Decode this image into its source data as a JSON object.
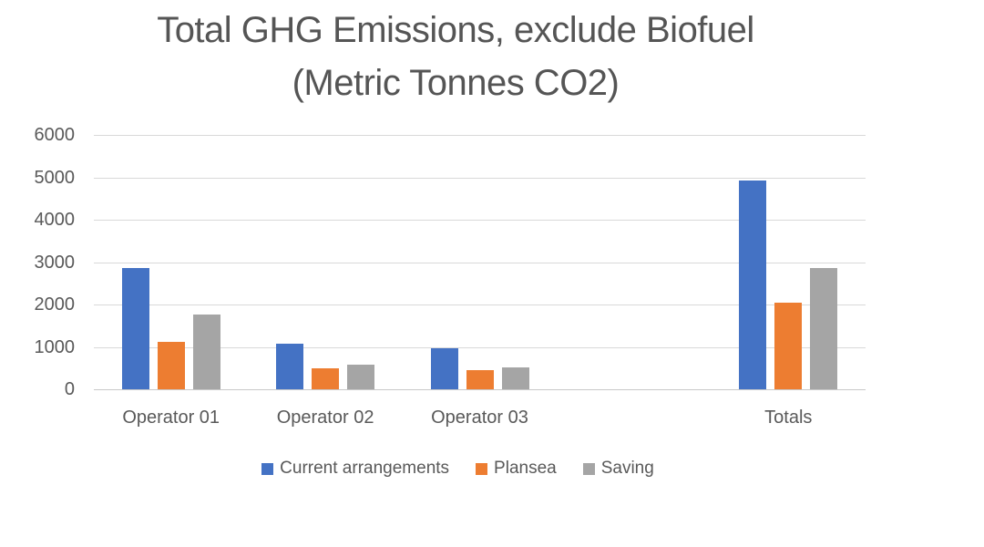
{
  "chart_data": {
    "type": "bar",
    "title": "Total GHG Emissions, exclude Biofuel (Metric Tonnes CO2)",
    "title_line1": "Total GHG Emissions, exclude Biofuel",
    "title_line2": "(Metric Tonnes CO2)",
    "categories": [
      "Operator 01",
      "Operator 02",
      "Operator 03",
      "",
      "Totals"
    ],
    "series": [
      {
        "name": "Current arrangements",
        "color": "#4472C4",
        "values": [
          2870,
          1080,
          970,
          null,
          4920
        ]
      },
      {
        "name": "Plansea",
        "color": "#ED7D31",
        "values": [
          1110,
          490,
          450,
          null,
          2050
        ]
      },
      {
        "name": "Saving",
        "color": "#A5A5A5",
        "values": [
          1760,
          590,
          520,
          null,
          2870
        ]
      }
    ],
    "xlabel": "",
    "ylabel": "",
    "ylim": [
      0,
      6000
    ],
    "y_ticks": [
      0,
      1000,
      2000,
      3000,
      4000,
      5000,
      6000
    ],
    "grid": true,
    "legend_position": "bottom",
    "colors": {
      "gridline": "#D9D9D9",
      "axis_line": "#C9C9C9",
      "axis_text": "#595959",
      "title_text": "#555555"
    }
  }
}
